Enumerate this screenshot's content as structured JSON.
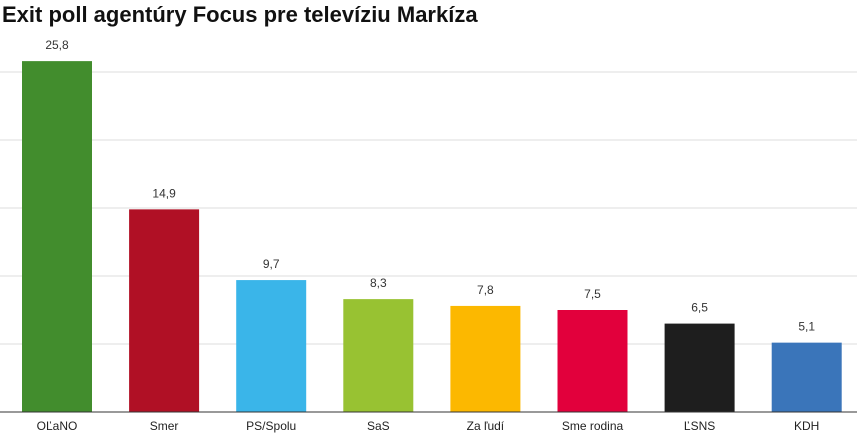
{
  "title": "Exit poll agentúry Focus pre televíziu Markíza",
  "chart_data": {
    "type": "bar",
    "title": "Exit poll agentúry Focus pre televíziu Markíza",
    "categories": [
      "OĽaNO",
      "Smer",
      "PS/Spolu",
      "SaS",
      "Za ľudí",
      "Sme rodina",
      "ĽSNS",
      "KDH"
    ],
    "values": [
      25.8,
      14.9,
      9.7,
      8.3,
      7.8,
      7.5,
      6.5,
      5.1
    ],
    "value_labels": [
      "25,8",
      "14,9",
      "9,7",
      "8,3",
      "7,8",
      "7,5",
      "6,5",
      "5,1"
    ],
    "colors": [
      "#428d2d",
      "#b01025",
      "#3ab5e9",
      "#98c232",
      "#fcb800",
      "#e2003c",
      "#1e1e1e",
      "#3a75ba"
    ],
    "xlabel": "",
    "ylabel": "",
    "ylim": [
      0,
      25
    ],
    "grid": true,
    "legend": "none"
  }
}
